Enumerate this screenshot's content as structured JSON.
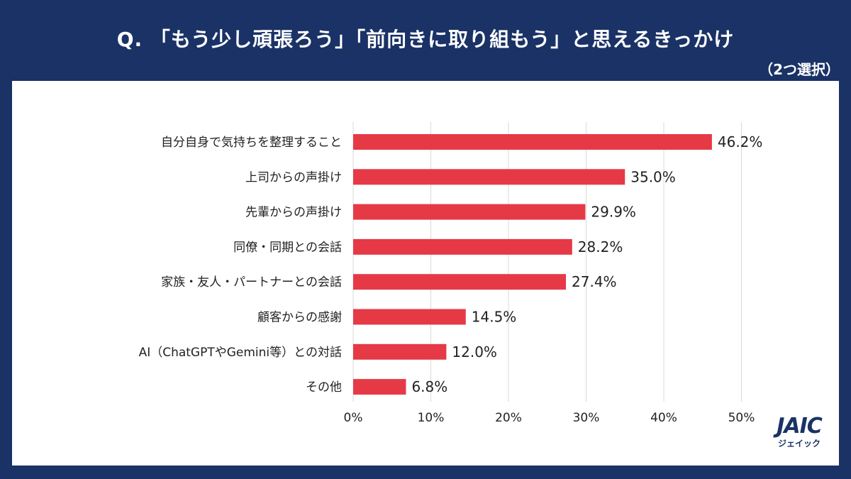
{
  "header": {
    "title": "Q. 「もう少し頑張ろう」「前向きに取り組もう」と思えるきっかけ",
    "subtitle": "（2つ選択）"
  },
  "logo": {
    "mark": "JAIC",
    "sub": "ジェイック"
  },
  "colors": {
    "background": "#1a3266",
    "bar": "#e63946",
    "grid": "#d9d9d9"
  },
  "chart_data": {
    "type": "bar",
    "orientation": "horizontal",
    "title": "Q. 「もう少し頑張ろう」「前向きに取り組もう」と思えるきっかけ",
    "subtitle": "（2つ選択）",
    "categories": [
      "自分自身で気持ちを整理すること",
      "上司からの声掛け",
      "先輩からの声掛け",
      "同僚・同期との会話",
      "家族・友人・パートナーとの会話",
      "顧客からの感謝",
      "AI（ChatGPTやGemini等）との対話",
      "その他"
    ],
    "values": [
      46.2,
      35.0,
      29.9,
      28.2,
      27.4,
      14.5,
      12.0,
      6.8
    ],
    "value_labels": [
      "46.2%",
      "35.0%",
      "29.9%",
      "28.2%",
      "27.4%",
      "14.5%",
      "12.0%",
      "6.8%"
    ],
    "x_ticks": [
      "0%",
      "10%",
      "20%",
      "30%",
      "40%",
      "50%"
    ],
    "xlim": [
      0,
      50
    ],
    "grid": true
  }
}
